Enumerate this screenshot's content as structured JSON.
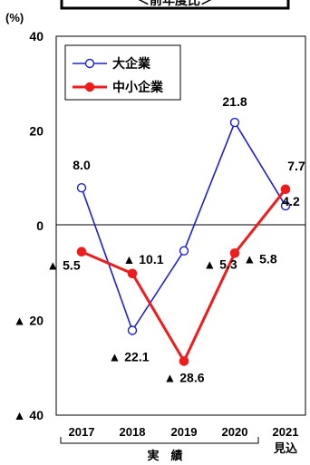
{
  "title": "＜前年度比＞",
  "y_unit": "(%)",
  "chart_data": {
    "type": "line",
    "categories": [
      "2017",
      "2018",
      "2019",
      "2020",
      "2021"
    ],
    "category_sublabels": [
      "",
      "",
      "",
      "",
      "見込"
    ],
    "group_label": "実　績",
    "ylim": [
      -40,
      40
    ],
    "yticks": [
      {
        "value": 40,
        "label": "40"
      },
      {
        "value": 20,
        "label": "20"
      },
      {
        "value": 0,
        "label": "0"
      },
      {
        "value": -20,
        "label": "▲ 20"
      },
      {
        "value": -40,
        "label": "▲ 40"
      }
    ],
    "legend_position": "top-left",
    "series": [
      {
        "name": "大企業",
        "color": "#1f1fd6",
        "marker": "open-circle",
        "values": [
          8.0,
          -22.1,
          -5.3,
          21.8,
          4.2
        ],
        "labels": [
          "8.0",
          "▲ 22.1",
          "▲ 5.3",
          "21.8",
          "4.2"
        ]
      },
      {
        "name": "中小企業",
        "color": "#ee1c1c",
        "marker": "filled-circle",
        "values": [
          -5.5,
          -10.1,
          -28.6,
          -5.8,
          7.7
        ],
        "labels": [
          "▲ 5.5",
          "▲ 10.1",
          "▲ 28.6",
          "▲ 5.8",
          "7.7"
        ]
      }
    ]
  }
}
